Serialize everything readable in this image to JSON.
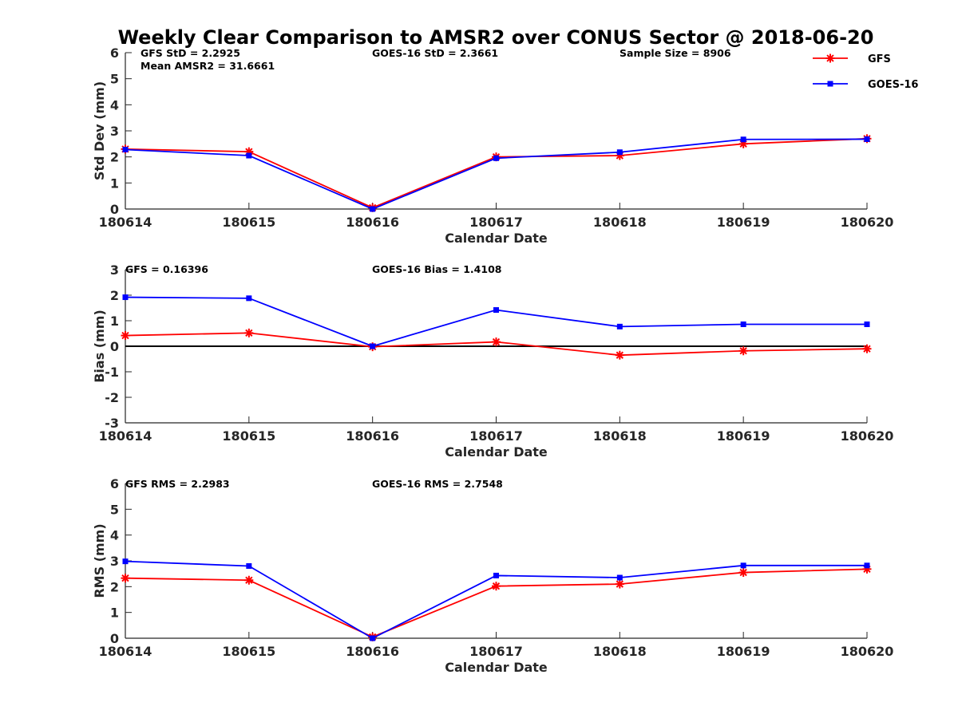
{
  "chart_data": {
    "title": "Weekly Clear Comparison to AMSR2 over CONUS Sector @ 2018-06-20",
    "legend": {
      "placement": "top-right, outside plot",
      "entries": [
        {
          "name": "GFS",
          "color": "#ff0000",
          "marker": "asterisk"
        },
        {
          "name": "GOES-16",
          "color": "#0000ff",
          "marker": "square"
        }
      ]
    },
    "panels": [
      {
        "type": "line",
        "xlabel": "Calendar Date",
        "ylabel": "Std Dev (mm)",
        "categories": [
          "180614",
          "180615",
          "180616",
          "180617",
          "180618",
          "180619",
          "180620"
        ],
        "ylim": [
          0,
          6
        ],
        "yticks": [
          "0",
          "1",
          "2",
          "3",
          "4",
          "5",
          "6"
        ],
        "zero_line": false,
        "annotations": [
          "GFS StD = 2.2925",
          "Mean AMSR2 = 31.6661",
          "GOES-16 StD = 2.3661",
          "Sample Size = 8906"
        ],
        "series": [
          {
            "name": "GFS",
            "color": "#ff0000",
            "marker": "asterisk",
            "values": [
              2.3,
              2.2,
              0.05,
              2.0,
              2.05,
              2.5,
              2.7
            ]
          },
          {
            "name": "GOES-16",
            "color": "#0000ff",
            "marker": "square",
            "values": [
              2.28,
              2.05,
              0.0,
              1.95,
              2.18,
              2.67,
              2.68
            ]
          }
        ]
      },
      {
        "type": "line",
        "xlabel": "Calendar Date",
        "ylabel": "Bias (mm)",
        "categories": [
          "180614",
          "180615",
          "180616",
          "180617",
          "180618",
          "180619",
          "180620"
        ],
        "ylim": [
          -3,
          3
        ],
        "yticks": [
          "-3",
          "-2",
          "-1",
          "0",
          "1",
          "2",
          "3"
        ],
        "zero_line": true,
        "annotations": [
          "GFS = 0.16396",
          "GOES-16 Bias  = 1.4108"
        ],
        "series": [
          {
            "name": "GFS",
            "color": "#ff0000",
            "marker": "asterisk",
            "values": [
              0.42,
              0.52,
              -0.02,
              0.17,
              -0.35,
              -0.18,
              -0.1
            ]
          },
          {
            "name": "GOES-16",
            "color": "#0000ff",
            "marker": "square",
            "values": [
              1.92,
              1.88,
              0.0,
              1.42,
              0.77,
              0.86,
              0.86
            ]
          }
        ]
      },
      {
        "type": "line",
        "xlabel": "Calendar Date",
        "ylabel": "RMS (mm)",
        "categories": [
          "180614",
          "180615",
          "180616",
          "180617",
          "180618",
          "180619",
          "180620"
        ],
        "ylim": [
          0,
          6
        ],
        "yticks": [
          "0",
          "1",
          "2",
          "3",
          "4",
          "5",
          "6"
        ],
        "zero_line": false,
        "annotations": [
          "GFS RMS = 2.2983",
          "GOES-16 RMS = 2.7548"
        ],
        "series": [
          {
            "name": "GFS",
            "color": "#ff0000",
            "marker": "asterisk",
            "values": [
              2.33,
              2.25,
              0.05,
              2.02,
              2.1,
              2.55,
              2.68
            ]
          },
          {
            "name": "GOES-16",
            "color": "#0000ff",
            "marker": "square",
            "values": [
              2.98,
              2.8,
              0.0,
              2.43,
              2.35,
              2.82,
              2.82
            ]
          }
        ]
      }
    ]
  }
}
